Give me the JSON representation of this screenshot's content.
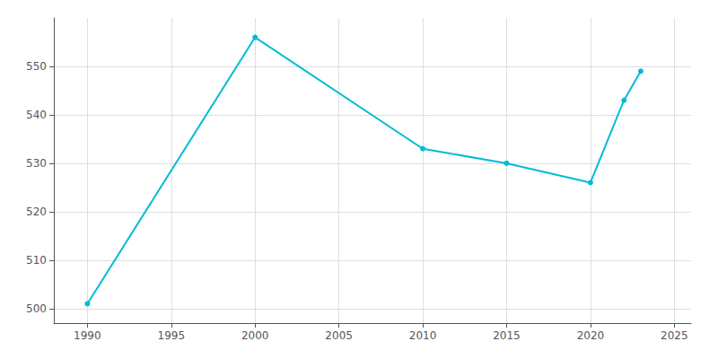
{
  "chart_data": {
    "type": "line",
    "x": [
      1990,
      2000,
      2010,
      2015,
      2020,
      2022,
      2023
    ],
    "values": [
      501,
      556,
      533,
      530,
      526,
      543,
      549
    ],
    "color": "#00bcd4",
    "marker": "circle",
    "xlim": [
      1988,
      2026
    ],
    "xticks": [
      1990,
      1995,
      2000,
      2005,
      2010,
      2015,
      2020,
      2025
    ],
    "ylim": [
      497,
      560
    ],
    "yticks": [
      500,
      510,
      520,
      530,
      540,
      550
    ],
    "grid": true
  }
}
